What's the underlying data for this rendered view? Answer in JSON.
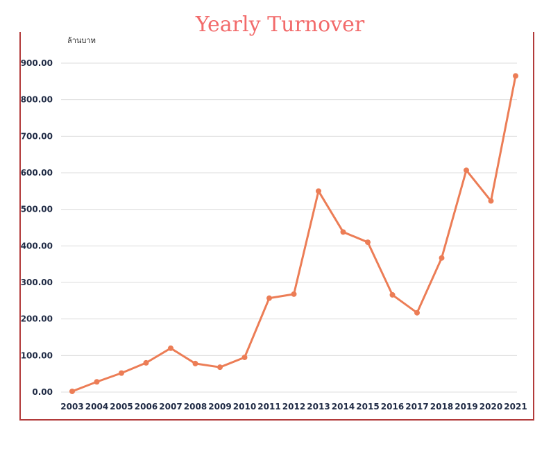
{
  "chart_data": {
    "type": "line",
    "title": "Yearly Turnover",
    "ylabel": "ล้านบาท",
    "xlabel": "",
    "x": [
      "2003",
      "2004",
      "2005",
      "2006",
      "2007",
      "2008",
      "2009",
      "2010",
      "2011",
      "2012",
      "2013",
      "2014",
      "2015",
      "2016",
      "2017",
      "2018",
      "2019",
      "2020",
      "2021"
    ],
    "series": [
      {
        "values": [
          2,
          28,
          52,
          80,
          120,
          78,
          68,
          95,
          257,
          268,
          550,
          438,
          410,
          266,
          217,
          367,
          607,
          523,
          865
        ],
        "color": "#ec7d56"
      }
    ],
    "ylim": [
      0,
      900
    ],
    "yticks": [
      "0.00",
      "100.00",
      "200.00",
      "300.00",
      "400.00",
      "500.00",
      "600.00",
      "700.00",
      "800.00",
      "900.00"
    ],
    "grid": true,
    "legend": "none"
  }
}
